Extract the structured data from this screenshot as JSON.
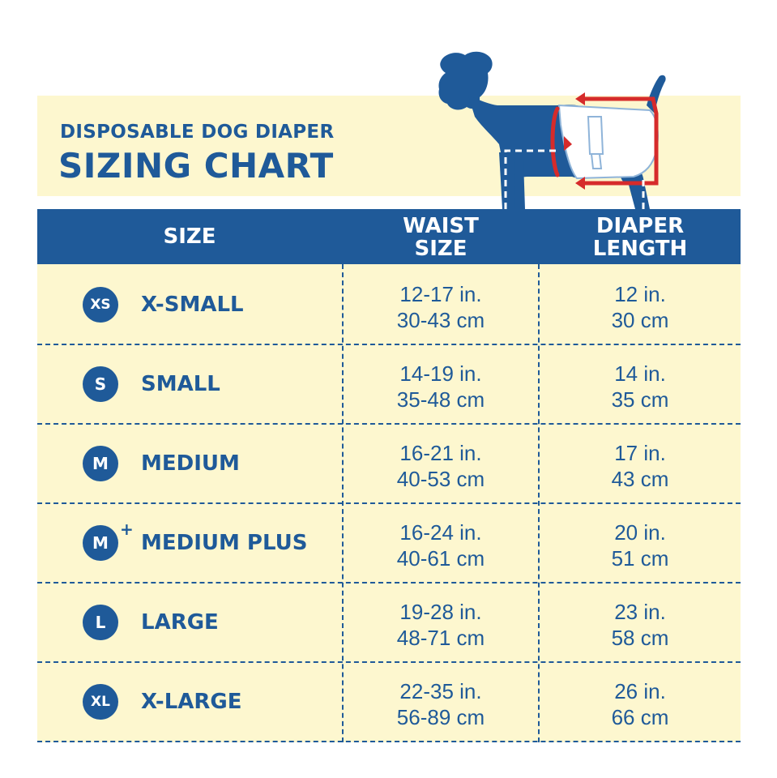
{
  "header": {
    "subtitle": "DISPOSABLE DOG DIAPER",
    "title": "SIZING CHART"
  },
  "columns": {
    "size": "SIZE",
    "waist_line1": "WAIST",
    "waist_line2": "SIZE",
    "length_line1": "DIAPER",
    "length_line2": "LENGTH"
  },
  "colors": {
    "brand_blue": "#1f5a99",
    "cream": "#fdf7cf",
    "arrow_red": "#d62b2b"
  },
  "illustration": {
    "icon": "dog-wearing-diaper-icon"
  },
  "rows": [
    {
      "badge": "XS",
      "plus": "",
      "label": "X-SMALL",
      "waist_in": "12-17 in.",
      "waist_cm": "30-43 cm",
      "length_in": "12 in.",
      "length_cm": "30 cm"
    },
    {
      "badge": "S",
      "plus": "",
      "label": "SMALL",
      "waist_in": "14-19 in.",
      "waist_cm": "35-48 cm",
      "length_in": "14 in.",
      "length_cm": "35 cm"
    },
    {
      "badge": "M",
      "plus": "",
      "label": "MEDIUM",
      "waist_in": "16-21 in.",
      "waist_cm": "40-53 cm",
      "length_in": "17 in.",
      "length_cm": "43 cm"
    },
    {
      "badge": "M",
      "plus": "+",
      "label": "MEDIUM PLUS",
      "waist_in": "16-24 in.",
      "waist_cm": "40-61 cm",
      "length_in": "20 in.",
      "length_cm": "51 cm"
    },
    {
      "badge": "L",
      "plus": "",
      "label": "LARGE",
      "waist_in": "19-28 in.",
      "waist_cm": "48-71 cm",
      "length_in": "23 in.",
      "length_cm": "58 cm"
    },
    {
      "badge": "XL",
      "plus": "",
      "label": "X-LARGE",
      "waist_in": "22-35 in.",
      "waist_cm": "56-89 cm",
      "length_in": "26 in.",
      "length_cm": "66 cm"
    }
  ]
}
